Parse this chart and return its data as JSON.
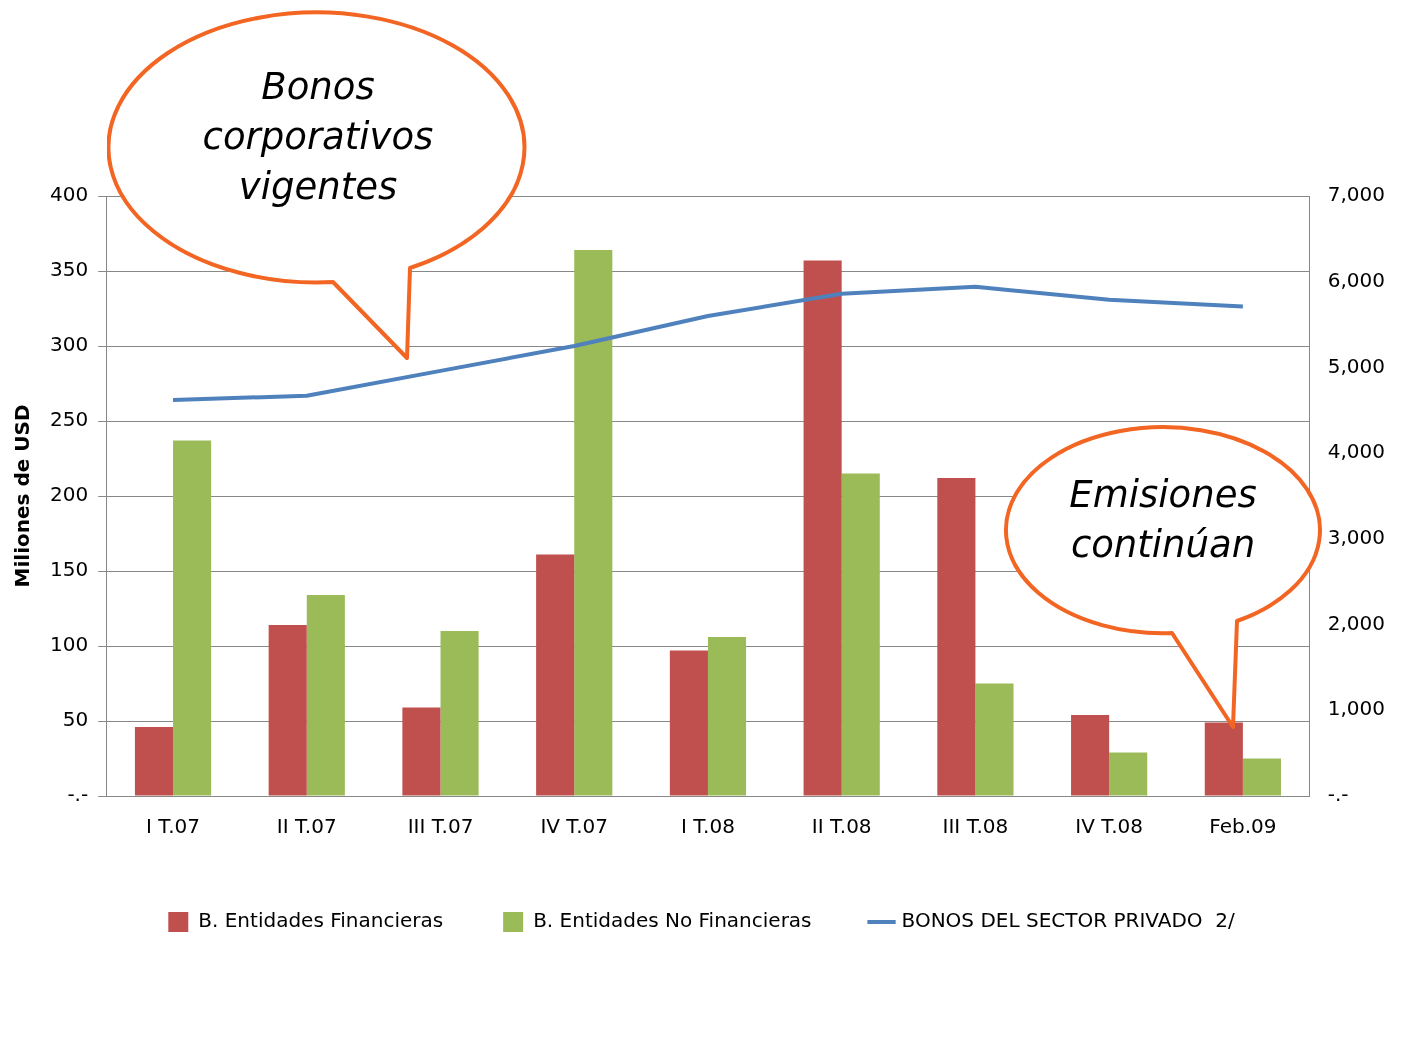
{
  "chart_data": {
    "type": "bar",
    "categories": [
      "I T.07",
      "II T.07",
      "III T.07",
      "IV T.07",
      "I T.08",
      "II T.08",
      "III T.08",
      "IV T.08",
      "Feb.09"
    ],
    "ylabel": "Miliones de USD",
    "series": [
      {
        "name": "B. Entidades Financieras",
        "color": "#c0504d",
        "values": [
          46,
          114,
          59,
          161,
          97,
          357,
          212,
          54,
          49
        ]
      },
      {
        "name": "B. Entidades No Financieras",
        "color": "#9bbb59",
        "values": [
          237,
          134,
          110,
          364,
          106,
          215,
          75,
          29,
          25
        ]
      },
      {
        "name": "BONOS DEL SECTOR PRIVADO  2/",
        "type": "line",
        "axis": "y2",
        "color": "#4f81bd",
        "values": [
          4620,
          4670,
          4960,
          5250,
          5600,
          5860,
          5940,
          5790,
          5710
        ]
      }
    ],
    "ylim": [
      0,
      400
    ],
    "yticks": [
      {
        "value": 0,
        "label": "-.-"
      },
      50,
      100,
      150,
      200,
      250,
      300,
      350,
      400
    ],
    "y2lim": [
      0,
      7000
    ],
    "y2ticks": [
      {
        "value": 0,
        "label": "-.-"
      },
      {
        "value": 1000,
        "label": "1,000"
      },
      {
        "value": 2000,
        "label": "2,000"
      },
      {
        "value": 3000,
        "label": "3,000"
      },
      {
        "value": 4000,
        "label": "4,000"
      },
      {
        "value": 5000,
        "label": "5,000"
      },
      {
        "value": 6000,
        "label": "6,000"
      },
      {
        "value": 7000,
        "label": "7,000"
      }
    ],
    "grid": "y",
    "legend": "bottom",
    "marker": "none",
    "line_style": "solid",
    "annotations": [
      "Bonos corporativos vigentes",
      "Emisiones continúan"
    ]
  }
}
